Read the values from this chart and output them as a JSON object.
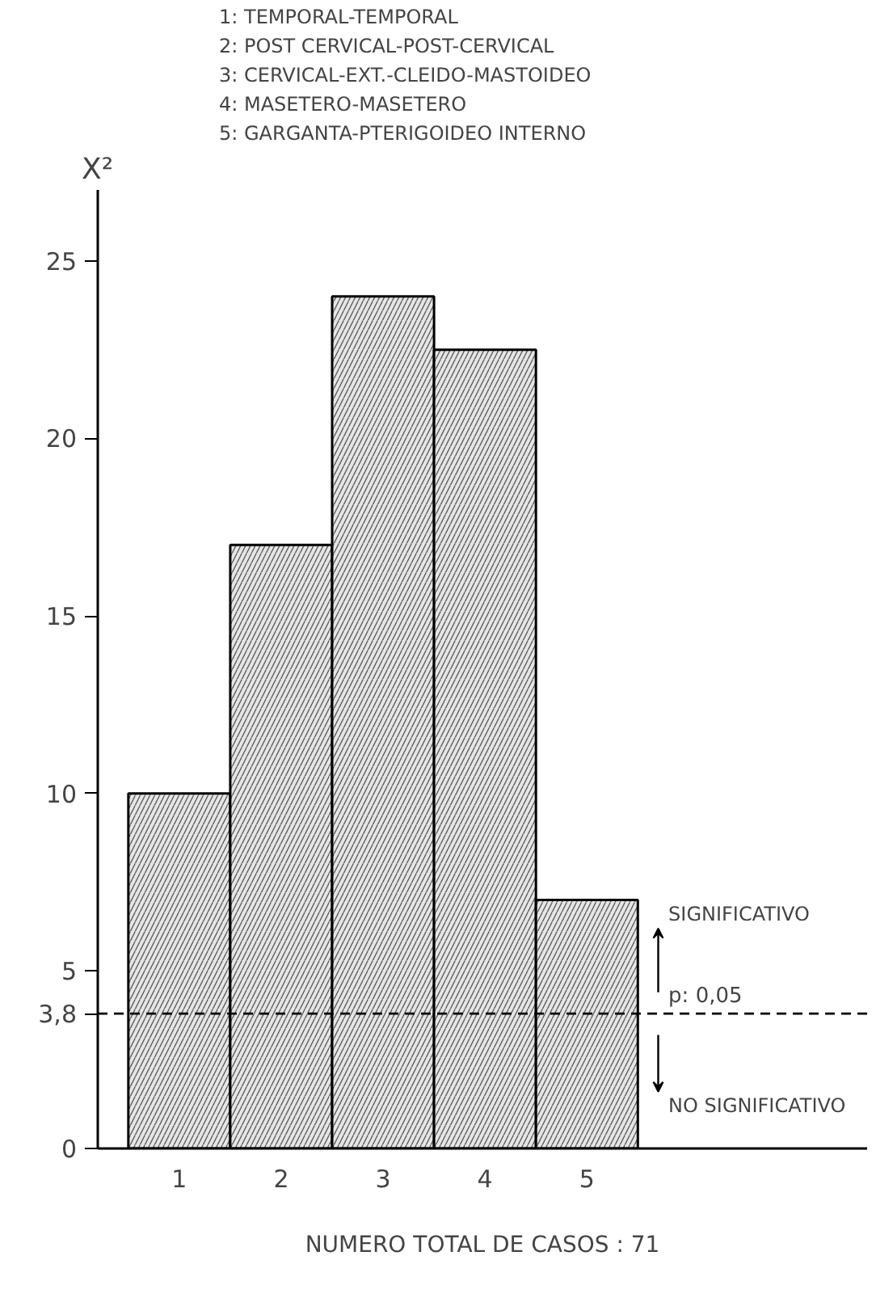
{
  "chart_data": {
    "type": "bar",
    "xlabel": "NUMERO TOTAL DE CASOS : 71",
    "ylabel": "X²",
    "categories": [
      "1",
      "2",
      "3",
      "4",
      "5"
    ],
    "values": [
      10,
      17,
      24,
      22.5,
      7
    ],
    "color": "#e6e6e6",
    "ylim": [
      0,
      27
    ],
    "yticks": [
      0,
      {
        "value": 3.8,
        "label": "3,8"
      },
      5,
      10,
      15,
      20,
      25
    ],
    "grid": false,
    "ref_lines": [
      {
        "axis": "y",
        "value": 3.8,
        "color": "#000000",
        "line_style": "dashed"
      }
    ],
    "annotations": [
      "1: TEMPORAL-TEMPORAL",
      "2: POST CERVICAL-POST-CERVICAL",
      "3: CERVICAL-EXT.-CLEIDO-MASTOIDEO",
      "4: MASETERO-MASETERO",
      "5: GARGANTA-PTERIGOIDEO INTERNO",
      "SIGNIFICATIVO",
      "NO SIGNIFICATIVO",
      {
        "text": "p: 0,05",
        "y": 3.8
      }
    ]
  }
}
